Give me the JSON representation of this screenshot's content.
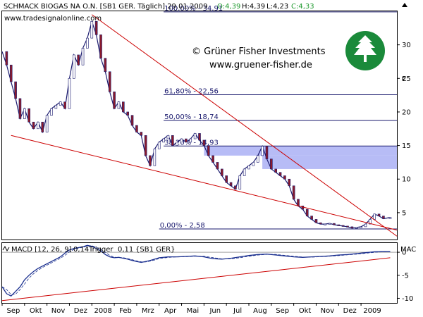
{
  "header": {
    "instrument": "SCHMACK BIOGAS NA O.N. [SB1 GER. Täglich] 29.01.2009",
    "ohlc_open": "O:4,39",
    "ohlc_high": "H:4,39",
    "ohlc_low": "L:4,23",
    "ohlc_close": "C:4,33"
  },
  "watermark": {
    "site": "www.tradesignalonline.com",
    "copyright": "© Grüner Fisher Investments",
    "url": "www.gruener-fisher.de"
  },
  "colors": {
    "price_line": "#1a1a6e",
    "down_candle": "#8b1a2b",
    "fib_line": "#1a1a6e",
    "trend_line": "#cc0000",
    "gap_box": "#aab0f5",
    "macd_line": "#1a2f8f",
    "logo_green": "#1a8a3a"
  },
  "chart_data": [
    {
      "type": "line",
      "title": "SCHMACK BIOGAS NA O.N. [SB1 GER. Täglich]",
      "x_ticks": [
        "Sep",
        "Okt",
        "Nov",
        "Dez",
        "2008",
        "Feb",
        "Mrz",
        "Apr",
        "Mai",
        "Jun",
        "Jul",
        "Aug",
        "Sep",
        "Okt",
        "Nov",
        "Dez",
        "2009"
      ],
      "y_ticks": [
        5,
        10,
        15,
        20,
        25,
        30
      ],
      "y_unit": "€",
      "ylim": [
        1,
        35
      ],
      "x_range": [
        0,
        17.6
      ],
      "series": [
        {
          "points": [
            [
              0.0,
              29.0
            ],
            [
              0.2,
              27.0
            ],
            [
              0.4,
              24.5
            ],
            [
              0.6,
              22.0
            ],
            [
              0.8,
              19.0
            ],
            [
              1.0,
              20.5
            ],
            [
              1.2,
              18.5
            ],
            [
              1.4,
              17.5
            ],
            [
              1.6,
              18.5
            ],
            [
              1.8,
              17.0
            ],
            [
              2.0,
              19.5
            ],
            [
              2.2,
              20.5
            ],
            [
              2.4,
              21.0
            ],
            [
              2.6,
              21.5
            ],
            [
              2.8,
              20.5
            ],
            [
              3.0,
              25.0
            ],
            [
              3.2,
              28.5
            ],
            [
              3.4,
              27.0
            ],
            [
              3.6,
              29.5
            ],
            [
              3.8,
              31.0
            ],
            [
              4.0,
              33.5
            ],
            [
              4.2,
              31.5
            ],
            [
              4.4,
              28.0
            ],
            [
              4.6,
              26.0
            ],
            [
              4.8,
              23.0
            ],
            [
              5.0,
              20.5
            ],
            [
              5.2,
              21.5
            ],
            [
              5.4,
              20.0
            ],
            [
              5.6,
              19.5
            ],
            [
              5.8,
              18.0
            ],
            [
              6.0,
              17.0
            ],
            [
              6.2,
              16.5
            ],
            [
              6.4,
              13.5
            ],
            [
              6.6,
              12.0
            ],
            [
              6.8,
              14.5
            ],
            [
              7.0,
              15.5
            ],
            [
              7.2,
              16.0
            ],
            [
              7.4,
              16.5
            ],
            [
              7.6,
              15.0
            ],
            [
              7.8,
              15.5
            ],
            [
              8.0,
              16.0
            ],
            [
              8.2,
              15.5
            ],
            [
              8.4,
              16.0
            ],
            [
              8.6,
              16.8
            ],
            [
              8.8,
              15.8
            ],
            [
              9.0,
              15.0
            ],
            [
              9.2,
              13.5
            ],
            [
              9.4,
              12.5
            ],
            [
              9.6,
              11.5
            ],
            [
              9.8,
              10.5
            ],
            [
              10.0,
              9.5
            ],
            [
              10.2,
              9.0
            ],
            [
              10.4,
              8.5
            ],
            [
              10.6,
              10.5
            ],
            [
              10.8,
              11.5
            ],
            [
              11.0,
              12.0
            ],
            [
              11.2,
              12.5
            ],
            [
              11.4,
              13.5
            ],
            [
              11.6,
              14.9
            ],
            [
              11.8,
              13.0
            ],
            [
              12.0,
              11.5
            ],
            [
              12.2,
              11.0
            ],
            [
              12.4,
              10.5
            ],
            [
              12.6,
              10.0
            ],
            [
              12.8,
              9.0
            ],
            [
              13.0,
              7.0
            ],
            [
              13.2,
              6.0
            ],
            [
              13.4,
              5.5
            ],
            [
              13.6,
              4.5
            ],
            [
              13.8,
              4.0
            ],
            [
              14.0,
              3.5
            ],
            [
              14.2,
              3.3
            ],
            [
              14.4,
              3.3
            ],
            [
              14.6,
              3.4
            ],
            [
              14.8,
              3.2
            ],
            [
              15.0,
              3.1
            ],
            [
              15.2,
              3.0
            ],
            [
              15.4,
              2.9
            ],
            [
              15.6,
              2.7
            ],
            [
              15.8,
              2.8
            ],
            [
              16.0,
              2.9
            ],
            [
              16.2,
              3.3
            ],
            [
              16.4,
              4.0
            ],
            [
              16.6,
              4.8
            ],
            [
              16.8,
              4.5
            ],
            [
              17.0,
              4.1
            ],
            [
              17.3,
              4.3
            ]
          ]
        }
      ],
      "fib_levels": [
        {
          "label": "100,00% - 34,91",
          "value": 34.91
        },
        {
          "label": "61,80% - 22,56",
          "value": 22.56
        },
        {
          "label": "50,00% - 18,74",
          "value": 18.74
        },
        {
          "label": "38,20% - 14,93",
          "value": 14.93
        },
        {
          "label": "0,00% - 2,58",
          "value": 2.58
        }
      ],
      "gap_zones": [
        {
          "x_start": 9.0,
          "x_end": 17.6,
          "y_low": 13.5,
          "y_high": 14.93
        },
        {
          "x_start": 11.6,
          "x_end": 17.6,
          "y_low": 11.5,
          "y_high": 13.5
        }
      ],
      "trend_lines": [
        {
          "from": [
            0.4,
            16.5
          ],
          "to": [
            17.6,
            2.4
          ]
        },
        {
          "from": [
            4.0,
            34.5
          ],
          "to": [
            17.6,
            1.5
          ]
        }
      ]
    },
    {
      "type": "line",
      "title": "MACD [12, 26, 9]",
      "legend_macd": "0,14",
      "legend_trigger_label": "Trigger",
      "legend_trigger": "0,11",
      "legend_suffix": "{SB1 GER}",
      "right_label": "MAC",
      "y_ticks": [
        0,
        -5,
        -10
      ],
      "ylim": [
        -11,
        2
      ],
      "series": [
        {
          "points": [
            [
              0.0,
              -7.5
            ],
            [
              0.2,
              -9.0
            ],
            [
              0.4,
              -9.5
            ],
            [
              0.6,
              -8.5
            ],
            [
              0.8,
              -7.5
            ],
            [
              1.0,
              -6.0
            ],
            [
              1.2,
              -5.0
            ],
            [
              1.4,
              -4.2
            ],
            [
              1.6,
              -3.5
            ],
            [
              1.8,
              -3.0
            ],
            [
              2.0,
              -2.5
            ],
            [
              2.2,
              -2.0
            ],
            [
              2.4,
              -1.5
            ],
            [
              2.6,
              -1.0
            ],
            [
              2.8,
              -0.2
            ],
            [
              3.0,
              0.5
            ],
            [
              3.2,
              0.8
            ],
            [
              3.4,
              1.0
            ],
            [
              3.6,
              1.2
            ],
            [
              3.8,
              1.5
            ],
            [
              4.0,
              1.3
            ],
            [
              4.2,
              0.8
            ],
            [
              4.4,
              0.3
            ],
            [
              4.6,
              -0.5
            ],
            [
              4.8,
              -1.0
            ],
            [
              5.0,
              -1.2
            ],
            [
              5.2,
              -1.1
            ],
            [
              5.4,
              -1.3
            ],
            [
              5.6,
              -1.5
            ],
            [
              5.8,
              -1.8
            ],
            [
              6.0,
              -2.0
            ],
            [
              6.2,
              -2.2
            ],
            [
              6.4,
              -2.0
            ],
            [
              6.6,
              -1.8
            ],
            [
              6.8,
              -1.5
            ],
            [
              7.0,
              -1.2
            ],
            [
              7.4,
              -1.0
            ],
            [
              7.8,
              -1.0
            ],
            [
              8.2,
              -0.9
            ],
            [
              8.6,
              -0.8
            ],
            [
              9.0,
              -1.0
            ],
            [
              9.4,
              -1.4
            ],
            [
              9.8,
              -1.5
            ],
            [
              10.2,
              -1.3
            ],
            [
              10.6,
              -1.0
            ],
            [
              11.0,
              -0.7
            ],
            [
              11.4,
              -0.5
            ],
            [
              11.8,
              -0.4
            ],
            [
              12.2,
              -0.6
            ],
            [
              12.6,
              -0.8
            ],
            [
              13.0,
              -1.0
            ],
            [
              13.4,
              -1.1
            ],
            [
              13.8,
              -1.0
            ],
            [
              14.2,
              -0.9
            ],
            [
              14.6,
              -0.8
            ],
            [
              15.0,
              -0.6
            ],
            [
              15.4,
              -0.5
            ],
            [
              15.8,
              -0.3
            ],
            [
              16.2,
              -0.1
            ],
            [
              16.6,
              0.1
            ],
            [
              17.0,
              0.15
            ],
            [
              17.3,
              0.14
            ]
          ]
        }
      ],
      "trend_lines": [
        {
          "from": [
            0.0,
            -10.5
          ],
          "to": [
            17.3,
            -1.2
          ]
        }
      ]
    }
  ]
}
